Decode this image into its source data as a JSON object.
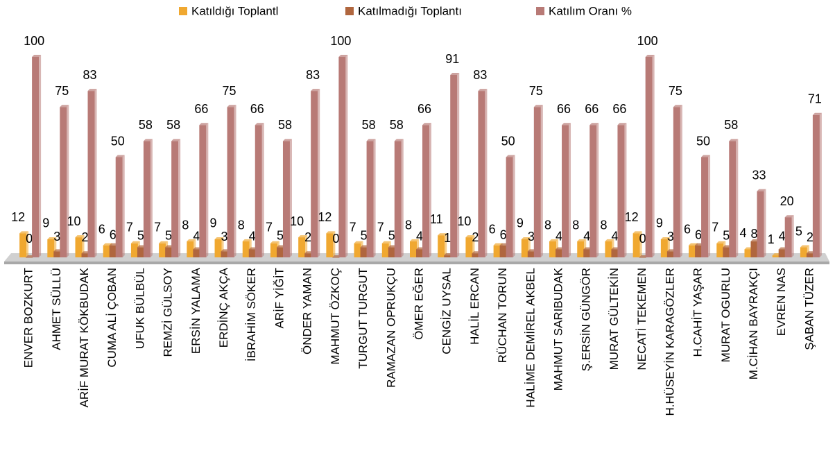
{
  "chart_data": {
    "type": "bar",
    "categories": [
      "ENVER BOZKURT",
      "AHMET SÜLLÜ",
      "ARİF MURAT KÖKBUDAK",
      "CUMA ALİ ÇOBAN",
      "UFUK BÜLBÜL",
      "REMZİ GÜLSOY",
      "ERSİN YALAMA",
      "ERDİNÇ AKÇA",
      "İBRAHİM SÖKER",
      "ARİF YİĞİT",
      "ÖNDER YAMAN",
      "MAHMUT ÖZKOÇ",
      "TURGUT TURGUT",
      "RAMAZAN OPRUKÇU",
      "ÖMER EĞER",
      "CENGİZ UYSAL",
      "HALİL ERCAN",
      "RÜCHAN TORUN",
      "HALİME DEMİREL AKBEL",
      "MAHMUT SARIBUDAK",
      "Ş.ERSİN GÜNGÖR",
      "MURAT GÜLTEKİN",
      "NECATİ TEKEMEN",
      "H.HÜSEYİN KARAGÖZLER",
      "H.CAHİT YAŞAR",
      "MURAT OGURLU",
      "M.CİHAN BAYRAKÇI",
      "EVREN NAS",
      "ŞABAN TÜZER"
    ],
    "series": [
      {
        "name": "Katıldığı Toplantl",
        "color": "#f0a830",
        "values": [
          12,
          9,
          10,
          6,
          7,
          7,
          8,
          9,
          8,
          7,
          10,
          12,
          7,
          7,
          8,
          11,
          10,
          6,
          9,
          8,
          8,
          8,
          12,
          9,
          6,
          7,
          4,
          1,
          5
        ]
      },
      {
        "name": "Katılmadığı Toplantı",
        "color": "#b0663e",
        "values": [
          0,
          3,
          2,
          6,
          5,
          5,
          4,
          3,
          4,
          5,
          2,
          0,
          5,
          5,
          4,
          1,
          2,
          6,
          3,
          4,
          4,
          4,
          0,
          3,
          6,
          5,
          8,
          4,
          2
        ]
      },
      {
        "name": "Katılım Oranı %",
        "color": "#b87a76",
        "values": [
          100,
          75,
          83,
          50,
          58,
          58,
          66,
          75,
          66,
          58,
          83,
          100,
          58,
          58,
          66,
          91,
          83,
          50,
          75,
          66,
          66,
          66,
          100,
          75,
          50,
          58,
          33,
          20,
          71
        ]
      }
    ],
    "ylim": [
      0,
      100
    ],
    "legend": "top"
  }
}
